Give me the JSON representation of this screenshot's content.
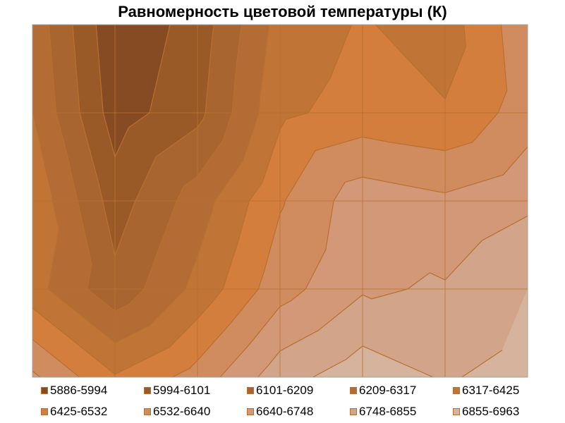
{
  "chart_data": {
    "type": "contour",
    "title": "Равномерность цветовой температуры (К)",
    "grid": true,
    "legend_position": "bottom",
    "rows": [
      [
        6284,
        5908,
        6037,
        6360,
        6435,
        6371,
        6608
      ],
      [
        6317,
        5940,
        6069,
        6403,
        6467,
        6435,
        6586
      ],
      [
        6403,
        6048,
        6263,
        6521,
        6704,
        6661,
        6726
      ],
      [
        6360,
        6133,
        6349,
        6597,
        6736,
        6758,
        6855
      ],
      [
        6661,
        6435,
        6575,
        6812,
        6920,
        6844,
        6898
      ]
    ],
    "bands": [
      {
        "label": "5886-5994",
        "lo": 5886,
        "hi": 5994,
        "color": "#864b22"
      },
      {
        "label": "5994-6101",
        "lo": 5994,
        "hi": 6101,
        "color": "#9a5a28"
      },
      {
        "label": "6101-6209",
        "lo": 6101,
        "hi": 6209,
        "color": "#a8652f"
      },
      {
        "label": "6209-6317",
        "lo": 6209,
        "hi": 6317,
        "color": "#b36c33"
      },
      {
        "label": "6317-6425",
        "lo": 6317,
        "hi": 6425,
        "color": "#c07436"
      },
      {
        "label": "6425-6532",
        "lo": 6425,
        "hi": 6532,
        "color": "#d37e3c"
      },
      {
        "label": "6532-6640",
        "lo": 6532,
        "hi": 6640,
        "color": "#d08b5f"
      },
      {
        "label": "6640-6748",
        "lo": 6640,
        "hi": 6748,
        "color": "#d39877"
      },
      {
        "label": "6748-6855",
        "lo": 6748,
        "hi": 6855,
        "color": "#d2a489"
      },
      {
        "label": "6855-6963",
        "lo": 6855,
        "hi": 6963,
        "color": "#d6b39c"
      }
    ],
    "line_color": "#b8702f"
  }
}
